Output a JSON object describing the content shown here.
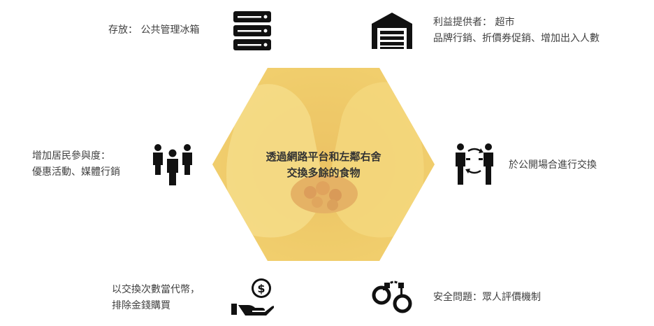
{
  "center": {
    "line1": "透過網路平台和左鄰右舍",
    "line2": "交換多餘的食物"
  },
  "items": {
    "storage": {
      "line1": "存放：  公共管理冰箱",
      "icon": "server-storage-icon"
    },
    "provider": {
      "line1": "利益提供者：  超市",
      "line2": "品牌行銷、折價券促銷、增加出入人數",
      "icon": "warehouse-icon"
    },
    "engagement": {
      "line1": "增加居民參與度：",
      "line2": "優惠活動、媒體行銷",
      "icon": "people-group-icon"
    },
    "exchange": {
      "line1": "於公開場合進行交換",
      "icon": "people-exchange-icon"
    },
    "barter": {
      "line1": "以交換次數當代幣，",
      "line2": "排除金錢購買",
      "icon": "money-hand-icon"
    },
    "safety": {
      "line1": "安全問題：眾人評價機制",
      "icon": "handcuffs-icon"
    }
  },
  "colors": {
    "accent": "#f5d15e",
    "icon": "#111111",
    "text": "#404040"
  }
}
